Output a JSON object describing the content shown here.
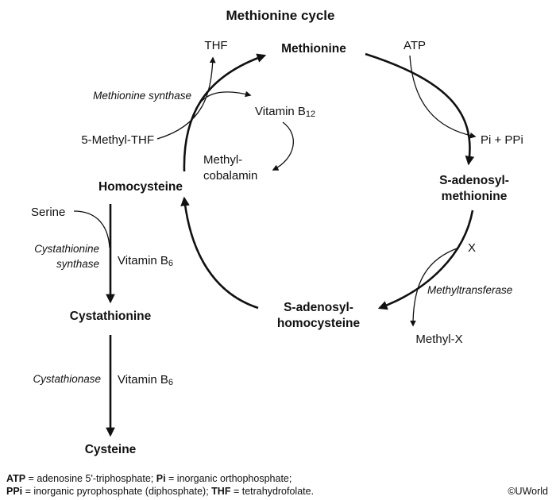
{
  "title": "Methionine cycle",
  "nodes": {
    "methionine": "Methionine",
    "sam_line1": "S-adenosyl-",
    "sam_line2": "methionine",
    "sah_line1": "S-adenosyl-",
    "sah_line2": "homocysteine",
    "homocysteine": "Homocysteine",
    "cystathionine": "Cystathionine",
    "cysteine": "Cysteine"
  },
  "substrates": {
    "thf": "THF",
    "methyl_thf": "5-Methyl-THF",
    "atp": "ATP",
    "pi_ppi": "Pi + PPi",
    "x": "X",
    "methyl_x": "Methyl-X",
    "serine": "Serine",
    "vitamin_b12_base": "Vitamin B",
    "vitamin_b12_sub": "12",
    "methylcobalamin_line1": "Methyl-",
    "methylcobalamin_line2": "cobalamin",
    "vitamin_b6_base": "Vitamin B",
    "vitamin_b6_sub": "6"
  },
  "enzymes": {
    "methionine_synthase": "Methionine synthase",
    "methyltransferase": "Methyltransferase",
    "cystathionine_synthase_line1": "Cystathionine",
    "cystathionine_synthase_line2": "synthase",
    "cystathionase": "Cystathionase"
  },
  "legend": {
    "atp_abbr": "ATP",
    "atp_def": " = adenosine 5'-triphosphate; ",
    "pi_abbr": "Pi",
    "pi_def": " = inorganic orthophosphate;",
    "ppi_abbr": "PPi",
    "ppi_def": " =  inorganic pyrophosphate (diphosphate); ",
    "thf_abbr": "THF",
    "thf_def": " = tetrahydrofolate."
  },
  "copyright": "©UWorld"
}
